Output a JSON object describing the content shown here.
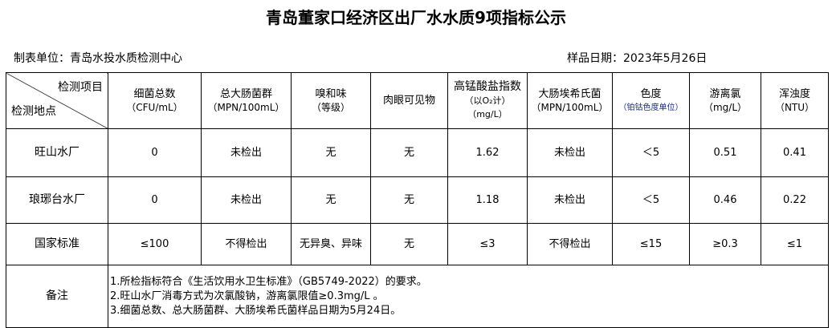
{
  "title": "青岛董家口经济区出厂水水质9项指标公示",
  "unit_label": "制表单位：青岛水投水质检测中心",
  "date_label": "样品日期：2023年5月26日",
  "corner": {
    "top": "检测项目",
    "bottom": "检测地点"
  },
  "headers": [
    {
      "name": "细菌总数",
      "unit": "（CFU/mL）"
    },
    {
      "name": "总大肠菌群",
      "unit": "（MPN/100mL）"
    },
    {
      "name": "嗅和味",
      "unit": "（等级）"
    },
    {
      "name": "肉眼可见物",
      "unit": ""
    },
    {
      "name": "高锰酸盐指数",
      "unit": "（以O₂计）",
      "unit2": "（mg/L）"
    },
    {
      "name": "大肠埃希氏菌",
      "unit": "（MPN/100mL）"
    },
    {
      "name": "色度",
      "unit": "（铂钴色度单位）"
    },
    {
      "name": "游离氯",
      "unit": "（mg/L）"
    },
    {
      "name": "浑浊度",
      "unit": "（NTU）"
    }
  ],
  "rows": [
    {
      "site": "旺山水厂",
      "values": [
        "0",
        "未检出",
        "无",
        "无",
        "1.62",
        "未检出",
        "＜5",
        "0.51",
        "0.41"
      ]
    },
    {
      "site": "琅琊台水厂",
      "values": [
        "0",
        "未检出",
        "无",
        "无",
        "1.18",
        "未检出",
        "＜5",
        "0.46",
        "0.22"
      ]
    },
    {
      "site": "国家标准",
      "values": [
        "≤100",
        "不得检出",
        "无异臭、异味",
        "无",
        "≤3",
        "不得检出",
        "≤15",
        "≥0.3",
        "≤1"
      ]
    }
  ],
  "notes_label": "备注",
  "notes": [
    "1.所检指标符合《生活饮用水卫生标准》（GB5749-2022）的要求。",
    "2.旺山水厂消毒方式为次氯酸钠，游离氯限值≥0.3mg/L 。",
    "3.细菌总数、总大肠菌群、大肠埃希氏菌样品日期为5月24日。"
  ]
}
